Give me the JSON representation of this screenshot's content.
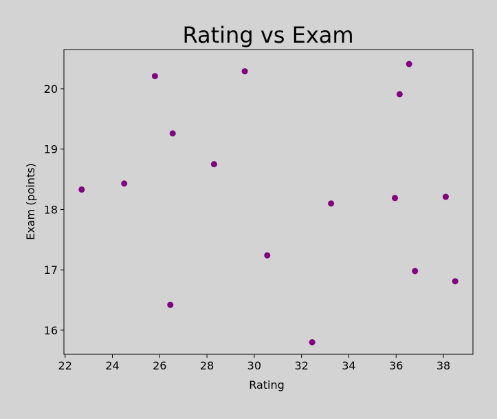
{
  "chart_data": {
    "type": "scatter",
    "title": "Rating vs Exam",
    "xlabel": "Rating",
    "ylabel": "Exam (points)",
    "xlim": [
      21.95,
      39.25
    ],
    "ylim": [
      15.6,
      20.65
    ],
    "x_ticks": [
      22,
      24,
      26,
      28,
      30,
      32,
      34,
      36,
      38
    ],
    "y_ticks": [
      16,
      17,
      18,
      19,
      20
    ],
    "grid": false,
    "legend": "none",
    "marker_color": "#800080",
    "background_color": "#d3d3d3",
    "points": [
      {
        "x": 22.7,
        "y": 18.33
      },
      {
        "x": 24.5,
        "y": 18.43
      },
      {
        "x": 25.8,
        "y": 20.21
      },
      {
        "x": 26.55,
        "y": 19.26
      },
      {
        "x": 26.45,
        "y": 16.42
      },
      {
        "x": 28.3,
        "y": 18.75
      },
      {
        "x": 29.6,
        "y": 20.29
      },
      {
        "x": 30.55,
        "y": 17.24
      },
      {
        "x": 32.45,
        "y": 15.8
      },
      {
        "x": 33.25,
        "y": 18.1
      },
      {
        "x": 35.95,
        "y": 18.19
      },
      {
        "x": 36.15,
        "y": 19.91
      },
      {
        "x": 36.55,
        "y": 20.41
      },
      {
        "x": 36.8,
        "y": 16.98
      },
      {
        "x": 38.1,
        "y": 18.21
      },
      {
        "x": 38.5,
        "y": 16.81
      }
    ]
  }
}
